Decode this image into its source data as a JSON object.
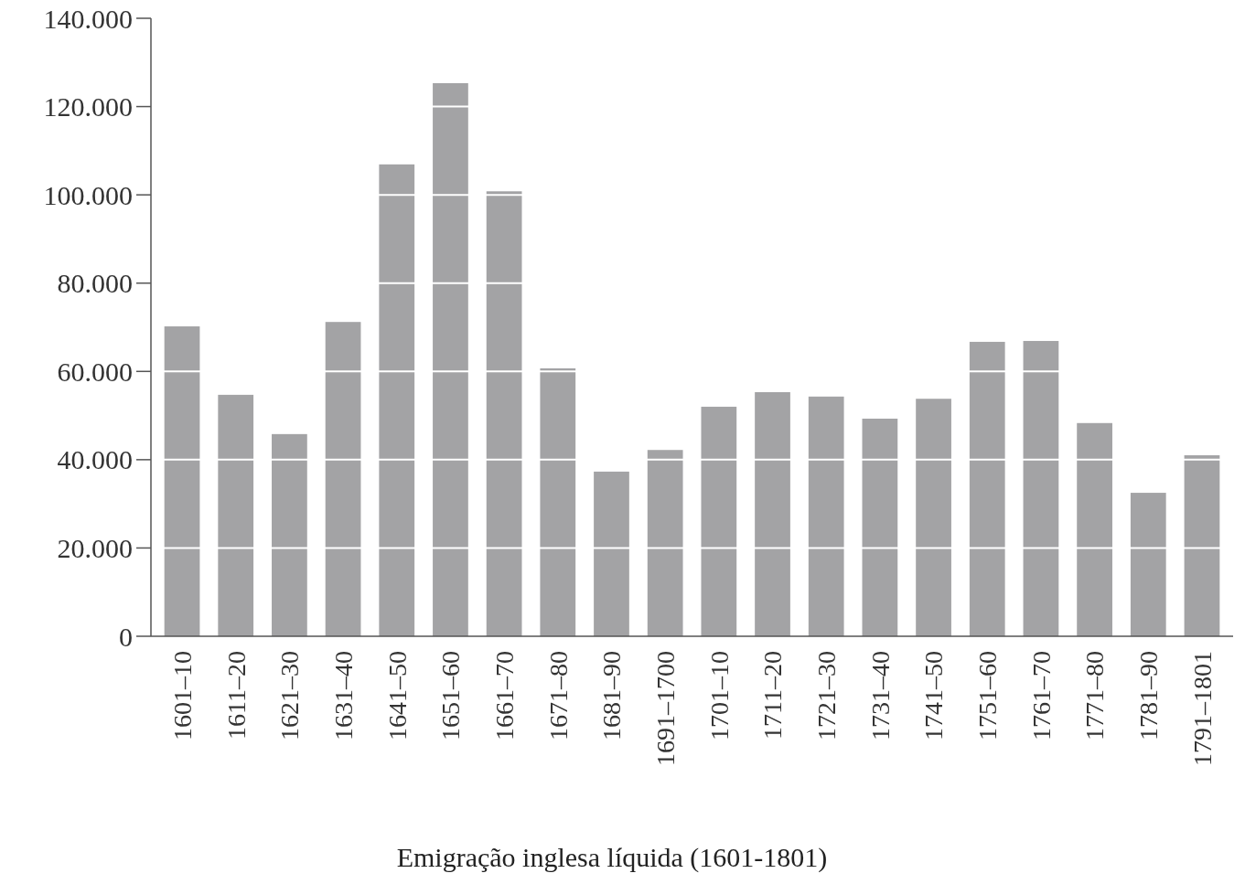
{
  "chart_data": {
    "type": "bar",
    "title": "Emigração inglesa líquida (1601-1801)",
    "categories": [
      "1601–10",
      "1611–20",
      "1621–30",
      "1631–40",
      "1641–50",
      "1651–60",
      "1661–70",
      "1671–80",
      "1681–90",
      "1691–1700",
      "1701–10",
      "1711–20",
      "1721–30",
      "1731–40",
      "1741–50",
      "1751–60",
      "1761–70",
      "1771–80",
      "1781–90",
      "1791–1801"
    ],
    "values": [
      70200,
      54700,
      45800,
      71200,
      106900,
      125300,
      100800,
      60700,
      37300,
      42200,
      52000,
      55300,
      54300,
      49300,
      53800,
      66700,
      66900,
      48300,
      32500,
      41000
    ],
    "color": "#a3a3a5",
    "ylim": [
      0,
      140000
    ],
    "yticks": [
      0,
      {
        "value": 20000,
        "label": "20.000"
      },
      {
        "value": 40000,
        "label": "40.000"
      },
      {
        "value": 60000,
        "label": "60.000"
      },
      {
        "value": 80000,
        "label": "80.000"
      },
      {
        "value": 100000,
        "label": "100.000"
      },
      {
        "value": 120000,
        "label": "120.000"
      },
      {
        "value": 140000,
        "label": "140.000"
      }
    ],
    "grid": "y"
  }
}
